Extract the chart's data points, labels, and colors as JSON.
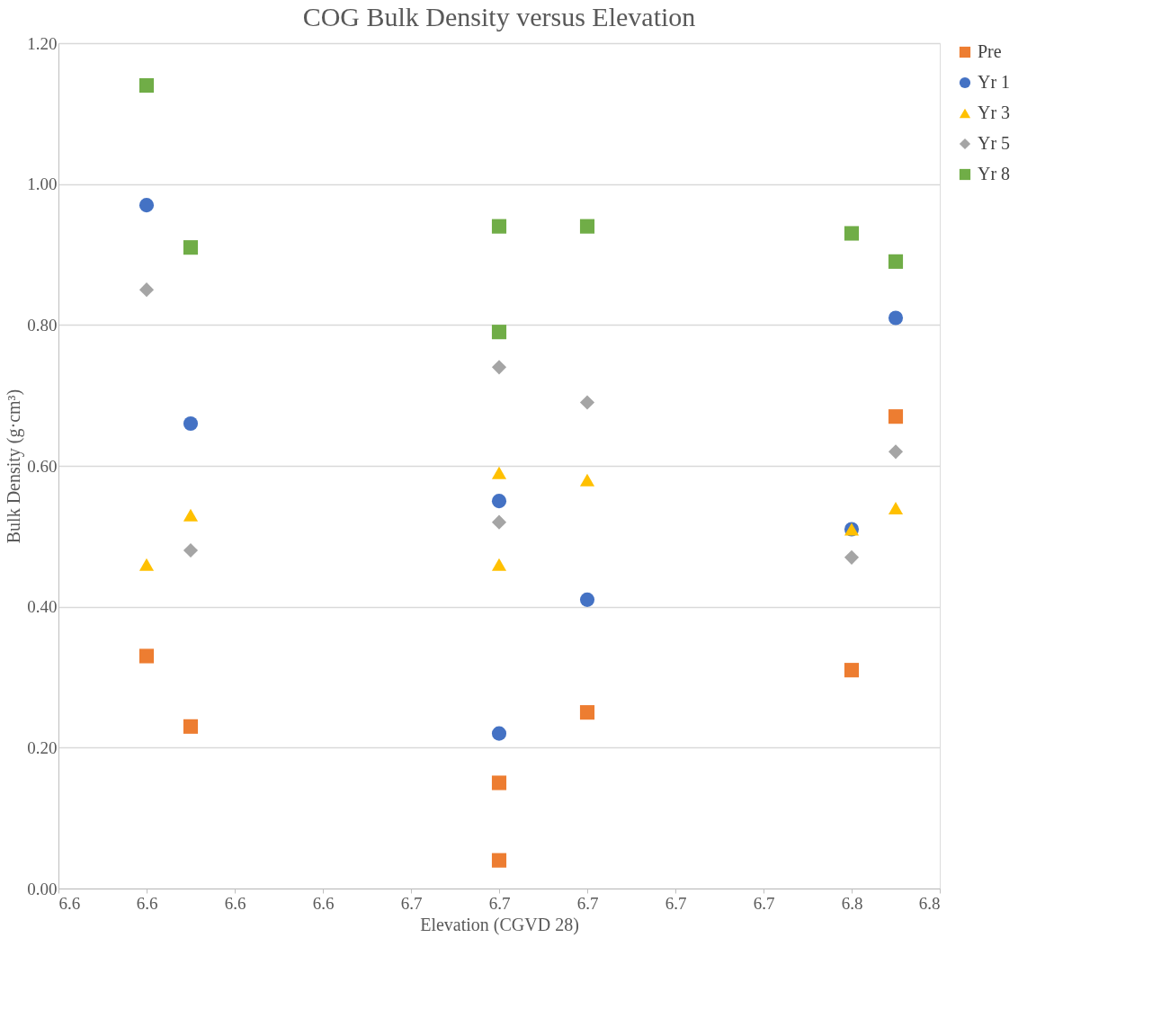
{
  "chart_data": {
    "type": "scatter",
    "title": "COG Bulk Density versus Elevation",
    "xlabel": "Elevation (CGVD 28)",
    "ylabel": "Bulk Density (g·cm³)",
    "x": [
      6.6,
      6.61,
      6.68,
      6.68,
      6.7,
      6.76,
      6.77
    ],
    "series": [
      {
        "name": "Pre",
        "color": "#ed7d31",
        "marker": "square",
        "values": [
          0.33,
          0.23,
          0.15,
          0.04,
          0.25,
          0.31,
          0.67
        ]
      },
      {
        "name": "Yr 1",
        "color": "#4472c4",
        "marker": "circle",
        "values": [
          0.97,
          0.66,
          0.55,
          0.22,
          0.41,
          0.51,
          0.81
        ]
      },
      {
        "name": "Yr 3",
        "color": "#ffc000",
        "marker": "triangle",
        "values": [
          0.46,
          0.53,
          0.59,
          0.46,
          0.58,
          0.51,
          0.54
        ]
      },
      {
        "name": "Yr 5",
        "color": "#a5a5a5",
        "marker": "diamond",
        "values": [
          0.85,
          0.48,
          0.74,
          0.52,
          0.69,
          0.47,
          0.62
        ]
      },
      {
        "name": "Yr 8",
        "color": "#70ad47",
        "marker": "square",
        "values": [
          1.14,
          0.91,
          0.94,
          0.79,
          0.94,
          0.93,
          0.89
        ]
      }
    ],
    "xlim": [
      6.58,
      6.78
    ],
    "xticks": [
      {
        "value": 6.58,
        "label": "6.6"
      },
      {
        "value": 6.6,
        "label": "6.6"
      },
      {
        "value": 6.62,
        "label": "6.6"
      },
      {
        "value": 6.64,
        "label": "6.6"
      },
      {
        "value": 6.66,
        "label": "6.7"
      },
      {
        "value": 6.68,
        "label": "6.7"
      },
      {
        "value": 6.7,
        "label": "6.7"
      },
      {
        "value": 6.72,
        "label": "6.7"
      },
      {
        "value": 6.74,
        "label": "6.7"
      },
      {
        "value": 6.76,
        "label": "6.8"
      },
      {
        "value": 6.78,
        "label": "6.8"
      }
    ],
    "ylim": [
      0,
      1.2
    ],
    "yticks": [
      {
        "value": 0,
        "label": "0.00"
      },
      {
        "value": 0.2,
        "label": "0.20"
      },
      {
        "value": 0.4,
        "label": "0.40"
      },
      {
        "value": 0.6,
        "label": "0.60"
      },
      {
        "value": 0.8,
        "label": "0.80"
      },
      {
        "value": 1.0,
        "label": "1.00"
      },
      {
        "value": 1.2,
        "label": "1.20"
      }
    ],
    "grid": "y",
    "legend": "right"
  }
}
